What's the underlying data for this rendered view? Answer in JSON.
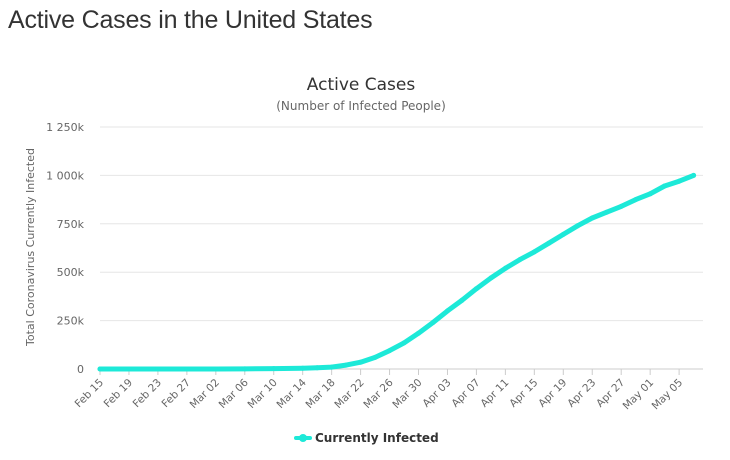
{
  "page": {
    "heading": "Active Cases in the United States"
  },
  "colors": {
    "series": "#1de9d8",
    "grid": "#e6e6e6",
    "text": "#333333",
    "axis_text": "#666666"
  },
  "chart_data": {
    "type": "line",
    "title": "Active Cases",
    "subtitle": "(Number of Infected People)",
    "ylabel": "Total Coronavirus Currently Infected",
    "xlabel": "",
    "ylim": [
      0,
      1250000
    ],
    "yticks": [
      0,
      250000,
      500000,
      750000,
      1000000,
      1250000
    ],
    "ytick_labels": [
      "0",
      "250k",
      "500k",
      "750k",
      "1 000k",
      "1 250k"
    ],
    "x_start": "Feb 15",
    "xtick_labels": [
      "Feb 15",
      "Feb 19",
      "Feb 23",
      "Feb 27",
      "Mar 02",
      "Mar 06",
      "Mar 10",
      "Mar 14",
      "Mar 18",
      "Mar 22",
      "Mar 26",
      "Mar 30",
      "Apr 03",
      "Apr 07",
      "Apr 11",
      "Apr 15",
      "Apr 19",
      "Apr 23",
      "Apr 27",
      "May 01",
      "May 05"
    ],
    "grid": true,
    "legend_position": "bottom-center",
    "series": [
      {
        "name": "Currently Infected",
        "x": [
          "Feb 15",
          "Feb 19",
          "Feb 23",
          "Feb 27",
          "Mar 02",
          "Mar 06",
          "Mar 10",
          "Mar 14",
          "Mar 16",
          "Mar 18",
          "Mar 20",
          "Mar 22",
          "Mar 24",
          "Mar 26",
          "Mar 28",
          "Mar 30",
          "Apr 01",
          "Apr 03",
          "Apr 05",
          "Apr 07",
          "Apr 09",
          "Apr 11",
          "Apr 13",
          "Apr 15",
          "Apr 17",
          "Apr 19",
          "Apr 21",
          "Apr 23",
          "Apr 25",
          "Apr 27",
          "Apr 29",
          "May 01",
          "May 03",
          "May 05",
          "May 07"
        ],
        "values": [
          0,
          0,
          0,
          0,
          100,
          300,
          2000,
          4000,
          6000,
          10000,
          20000,
          35000,
          60000,
          95000,
          135000,
          185000,
          240000,
          300000,
          355000,
          415000,
          470000,
          520000,
          565000,
          605000,
          650000,
          695000,
          740000,
          780000,
          810000,
          840000,
          875000,
          905000,
          945000,
          970000,
          1000000
        ]
      }
    ]
  }
}
